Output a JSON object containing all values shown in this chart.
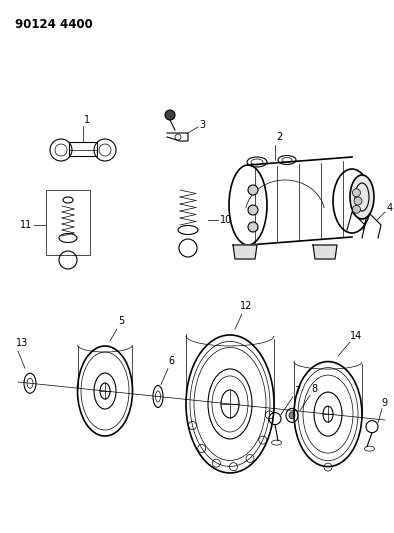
{
  "title": "90124 4400",
  "bg": "#ffffff",
  "lc": "#000000",
  "figsize": [
    3.94,
    5.33
  ],
  "dpi": 100
}
